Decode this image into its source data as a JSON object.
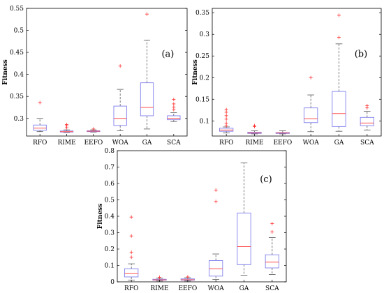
{
  "chart_data": [
    {
      "type": "box",
      "panel_label": "(a)",
      "ylabel": "Fitness",
      "ylim": [
        0.26,
        0.55
      ],
      "yticks": [
        "0.3",
        "0.35",
        "0.4",
        "0.45",
        "0.5",
        "0.55"
      ],
      "categories": [
        "RFO",
        "RIME",
        "EEFO",
        "WOA",
        "GA",
        "SCA"
      ],
      "colors": {
        "box": "#8080ee",
        "median": "#ff5050",
        "whisker": "#555555",
        "outlier": "#ff3030"
      },
      "boxes": [
        {
          "category": "RFO",
          "lower_whisker": 0.27,
          "q1": 0.273,
          "median": 0.278,
          "q3": 0.285,
          "upper_whisker": 0.3,
          "outliers": [
            0.336
          ]
        },
        {
          "category": "RIME",
          "lower_whisker": 0.268,
          "q1": 0.269,
          "median": 0.27,
          "q3": 0.2715,
          "upper_whisker": 0.274,
          "outliers": [
            0.279,
            0.283,
            0.286
          ]
        },
        {
          "category": "EEFO",
          "lower_whisker": 0.269,
          "q1": 0.27,
          "median": 0.271,
          "q3": 0.272,
          "upper_whisker": 0.274,
          "outliers": [
            0.276
          ]
        },
        {
          "category": "WOA",
          "lower_whisker": 0.272,
          "q1": 0.284,
          "median": 0.3,
          "q3": 0.328,
          "upper_whisker": 0.366,
          "outliers": [
            0.419
          ]
        },
        {
          "category": "GA",
          "lower_whisker": 0.276,
          "q1": 0.306,
          "median": 0.325,
          "q3": 0.381,
          "upper_whisker": 0.478,
          "outliers": [
            0.537
          ]
        },
        {
          "category": "SCA",
          "lower_whisker": 0.293,
          "q1": 0.297,
          "median": 0.3,
          "q3": 0.306,
          "upper_whisker": 0.313,
          "outliers": [
            0.32,
            0.326,
            0.333,
            0.343
          ]
        }
      ]
    },
    {
      "type": "box",
      "panel_label": "(b)",
      "ylabel": "Fitness",
      "ylim": [
        0.065,
        0.36
      ],
      "yticks": [
        "0.1",
        "0.15",
        "0.2",
        "0.25",
        "0.3",
        "0.35"
      ],
      "categories": [
        "RFO",
        "RIME",
        "EEFO",
        "WOA",
        "GA",
        "SCA"
      ],
      "colors": {
        "box": "#8080ee",
        "median": "#ff5050",
        "whisker": "#555555",
        "outlier": "#ff3030"
      },
      "boxes": [
        {
          "category": "RFO",
          "lower_whisker": 0.072,
          "q1": 0.076,
          "median": 0.079,
          "q3": 0.083,
          "upper_whisker": 0.086,
          "outliers": [
            0.089,
            0.095,
            0.104,
            0.112,
            0.12,
            0.126
          ]
        },
        {
          "category": "RIME",
          "lower_whisker": 0.07,
          "q1": 0.071,
          "median": 0.072,
          "q3": 0.074,
          "upper_whisker": 0.077,
          "outliers": [
            0.087,
            0.089
          ]
        },
        {
          "category": "EEFO",
          "lower_whisker": 0.07,
          "q1": 0.071,
          "median": 0.072,
          "q3": 0.073,
          "upper_whisker": 0.077,
          "outliers": []
        },
        {
          "category": "WOA",
          "lower_whisker": 0.075,
          "q1": 0.096,
          "median": 0.105,
          "q3": 0.13,
          "upper_whisker": 0.16,
          "outliers": [
            0.2
          ]
        },
        {
          "category": "GA",
          "lower_whisker": 0.076,
          "q1": 0.087,
          "median": 0.117,
          "q3": 0.168,
          "upper_whisker": 0.278,
          "outliers": [
            0.293,
            0.344
          ]
        },
        {
          "category": "SCA",
          "lower_whisker": 0.079,
          "q1": 0.089,
          "median": 0.095,
          "q3": 0.108,
          "upper_whisker": 0.122,
          "outliers": [
            0.13,
            0.135
          ]
        }
      ]
    },
    {
      "type": "box",
      "panel_label": "(c)",
      "ylabel": "Fitness",
      "ylim": [
        0,
        0.8
      ],
      "yticks": [
        "0",
        "0.1",
        "0.2",
        "0.3",
        "0.4",
        "0.5",
        "0.6",
        "0.7",
        "0.8"
      ],
      "categories": [
        "RFO",
        "RIME",
        "EEFO",
        "WOA",
        "GA",
        "SCA"
      ],
      "colors": {
        "box": "#8080ee",
        "median": "#ff5050",
        "whisker": "#555555",
        "outlier": "#ff3030"
      },
      "boxes": [
        {
          "category": "RFO",
          "lower_whisker": 0.01,
          "q1": 0.03,
          "median": 0.05,
          "q3": 0.08,
          "upper_whisker": 0.11,
          "outliers": [
            0.15,
            0.18,
            0.28,
            0.395
          ]
        },
        {
          "category": "RIME",
          "lower_whisker": 0.005,
          "q1": 0.01,
          "median": 0.012,
          "q3": 0.016,
          "upper_whisker": 0.022,
          "outliers": [
            0.028
          ]
        },
        {
          "category": "EEFO",
          "lower_whisker": 0.005,
          "q1": 0.01,
          "median": 0.013,
          "q3": 0.018,
          "upper_whisker": 0.025,
          "outliers": [
            0.03
          ]
        },
        {
          "category": "WOA",
          "lower_whisker": 0.015,
          "q1": 0.035,
          "median": 0.08,
          "q3": 0.13,
          "upper_whisker": 0.17,
          "outliers": [
            0.49,
            0.56
          ]
        },
        {
          "category": "GA",
          "lower_whisker": 0.04,
          "q1": 0.105,
          "median": 0.215,
          "q3": 0.42,
          "upper_whisker": 0.725,
          "outliers": []
        },
        {
          "category": "SCA",
          "lower_whisker": 0.045,
          "q1": 0.085,
          "median": 0.12,
          "q3": 0.165,
          "upper_whisker": 0.27,
          "outliers": [
            0.305,
            0.355
          ]
        }
      ]
    }
  ]
}
